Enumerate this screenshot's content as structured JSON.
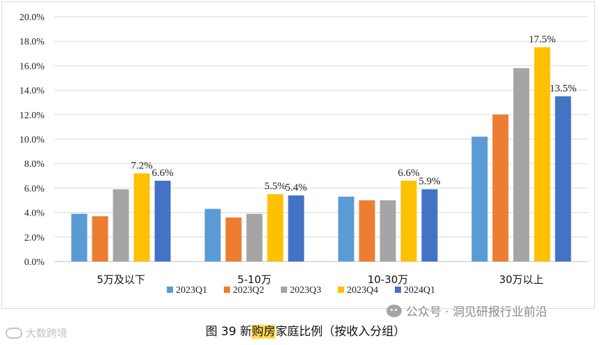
{
  "chart_data": {
    "type": "bar",
    "title": "",
    "xlabel": "",
    "ylabel": "",
    "categories": [
      "5万及以下",
      "5-10万",
      "10-30万",
      "30万以上"
    ],
    "ylim": [
      0,
      20
    ],
    "yticks": [
      0,
      2,
      4,
      6,
      8,
      10,
      12,
      14,
      16,
      18,
      20
    ],
    "tick_format": "percent_1dp",
    "grid": true,
    "legend_position": "bottom",
    "series": [
      {
        "name": "2023Q1",
        "color": "#5b9bd5",
        "values": [
          3.9,
          4.3,
          5.3,
          10.2
        ],
        "labels": [
          "",
          "",
          "",
          ""
        ]
      },
      {
        "name": "2023Q2",
        "color": "#ed7d31",
        "values": [
          3.7,
          3.6,
          5.0,
          12.0
        ],
        "labels": [
          "",
          "",
          "",
          ""
        ]
      },
      {
        "name": "2023Q3",
        "color": "#a5a5a5",
        "values": [
          5.9,
          3.9,
          5.0,
          15.8
        ],
        "labels": [
          "",
          "",
          "",
          ""
        ]
      },
      {
        "name": "2023Q4",
        "color": "#ffc000",
        "values": [
          7.2,
          5.5,
          6.6,
          17.5
        ],
        "labels": [
          "7.2%",
          "5.5%",
          "6.6%",
          "17.5%"
        ]
      },
      {
        "name": "2024Q1",
        "color": "#4472c4",
        "values": [
          6.6,
          5.4,
          5.9,
          13.5
        ],
        "labels": [
          "6.6%",
          "5.4%",
          "5.9%",
          "13.5%"
        ]
      }
    ]
  },
  "caption": {
    "prefix": "图  39  新",
    "highlight": "购房",
    "suffix": "家庭比例（按收入分组）"
  },
  "watermark": {
    "text": "公众号 · 洞见研报行业前沿",
    "icon": "wechat-icon"
  },
  "logo": {
    "text": "大数跨境",
    "icon": "logo-mark"
  }
}
